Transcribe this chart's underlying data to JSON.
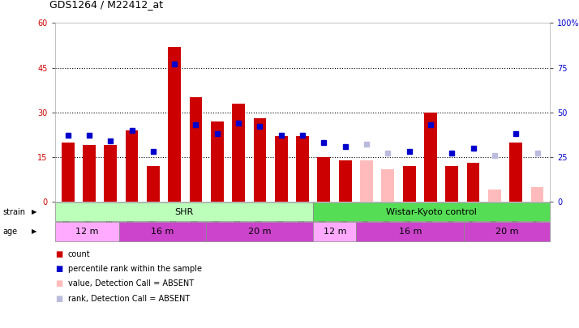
{
  "title": "GDS1264 / M22412_at",
  "samples": [
    "GSM38239",
    "GSM38240",
    "GSM38241",
    "GSM38242",
    "GSM38243",
    "GSM38244",
    "GSM38245",
    "GSM38246",
    "GSM38247",
    "GSM38248",
    "GSM38249",
    "GSM38250",
    "GSM38251",
    "GSM38252",
    "GSM38253",
    "GSM38254",
    "GSM38255",
    "GSM38256",
    "GSM38257",
    "GSM38258",
    "GSM38259",
    "GSM38260",
    "GSM38261"
  ],
  "count_values": [
    20,
    19,
    19,
    24,
    12,
    52,
    35,
    27,
    33,
    28,
    22,
    22,
    15,
    14,
    0,
    0,
    12,
    30,
    12,
    13,
    0,
    20,
    0
  ],
  "count_absent": [
    false,
    false,
    false,
    false,
    false,
    false,
    false,
    false,
    false,
    false,
    false,
    false,
    false,
    false,
    true,
    true,
    false,
    false,
    false,
    false,
    true,
    false,
    true
  ],
  "count_absent_vals": [
    0,
    0,
    0,
    0,
    0,
    0,
    0,
    0,
    0,
    0,
    0,
    0,
    0,
    0,
    14,
    11,
    0,
    0,
    0,
    0,
    4,
    0,
    5
  ],
  "rank_values": [
    37,
    37,
    34,
    40,
    28,
    77,
    43,
    38,
    44,
    42,
    37,
    37,
    33,
    31,
    32,
    26,
    28,
    43,
    27,
    30,
    30,
    38,
    26
  ],
  "rank_absent": [
    false,
    false,
    false,
    false,
    false,
    false,
    false,
    false,
    false,
    false,
    false,
    false,
    false,
    false,
    true,
    true,
    false,
    false,
    false,
    false,
    true,
    false,
    true
  ],
  "rank_absent_vals": [
    0,
    0,
    0,
    0,
    0,
    0,
    0,
    0,
    0,
    0,
    0,
    0,
    0,
    0,
    32,
    27,
    0,
    0,
    0,
    0,
    26,
    0,
    27
  ],
  "ylim_left": [
    0,
    60
  ],
  "ylim_right": [
    0,
    100
  ],
  "yticks_left": [
    0,
    15,
    30,
    45,
    60
  ],
  "yticks_right": [
    0,
    25,
    50,
    75,
    100
  ],
  "ytick_labels_right": [
    "0",
    "25",
    "50",
    "75",
    "100%"
  ],
  "bar_color_red": "#cc0000",
  "bar_color_pink": "#ffbbbb",
  "dot_color_blue": "#0000cc",
  "dot_color_lightblue": "#bbbbdd",
  "strain_shr_color": "#bbffbb",
  "strain_wk_color": "#55dd55",
  "age_color_light": "#ffaaff",
  "age_color_dark": "#cc44cc",
  "bg_color": "#ffffff",
  "legend_labels": [
    "count",
    "percentile rank within the sample",
    "value, Detection Call = ABSENT",
    "rank, Detection Call = ABSENT"
  ],
  "legend_colors": [
    "#cc0000",
    "#0000cc",
    "#ffbbbb",
    "#bbbbdd"
  ],
  "shr_count": 12,
  "n_total": 23,
  "age_groups_shr": [
    {
      "label": "12 m",
      "start": 0,
      "end": 3,
      "dark": false
    },
    {
      "label": "16 m",
      "start": 3,
      "end": 7,
      "dark": true
    },
    {
      "label": "20 m",
      "start": 7,
      "end": 12,
      "dark": true
    }
  ],
  "age_groups_wk": [
    {
      "label": "12 m",
      "start": 12,
      "end": 14,
      "dark": false
    },
    {
      "label": "16 m",
      "start": 14,
      "end": 19,
      "dark": true
    },
    {
      "label": "20 m",
      "start": 19,
      "end": 23,
      "dark": true
    }
  ]
}
